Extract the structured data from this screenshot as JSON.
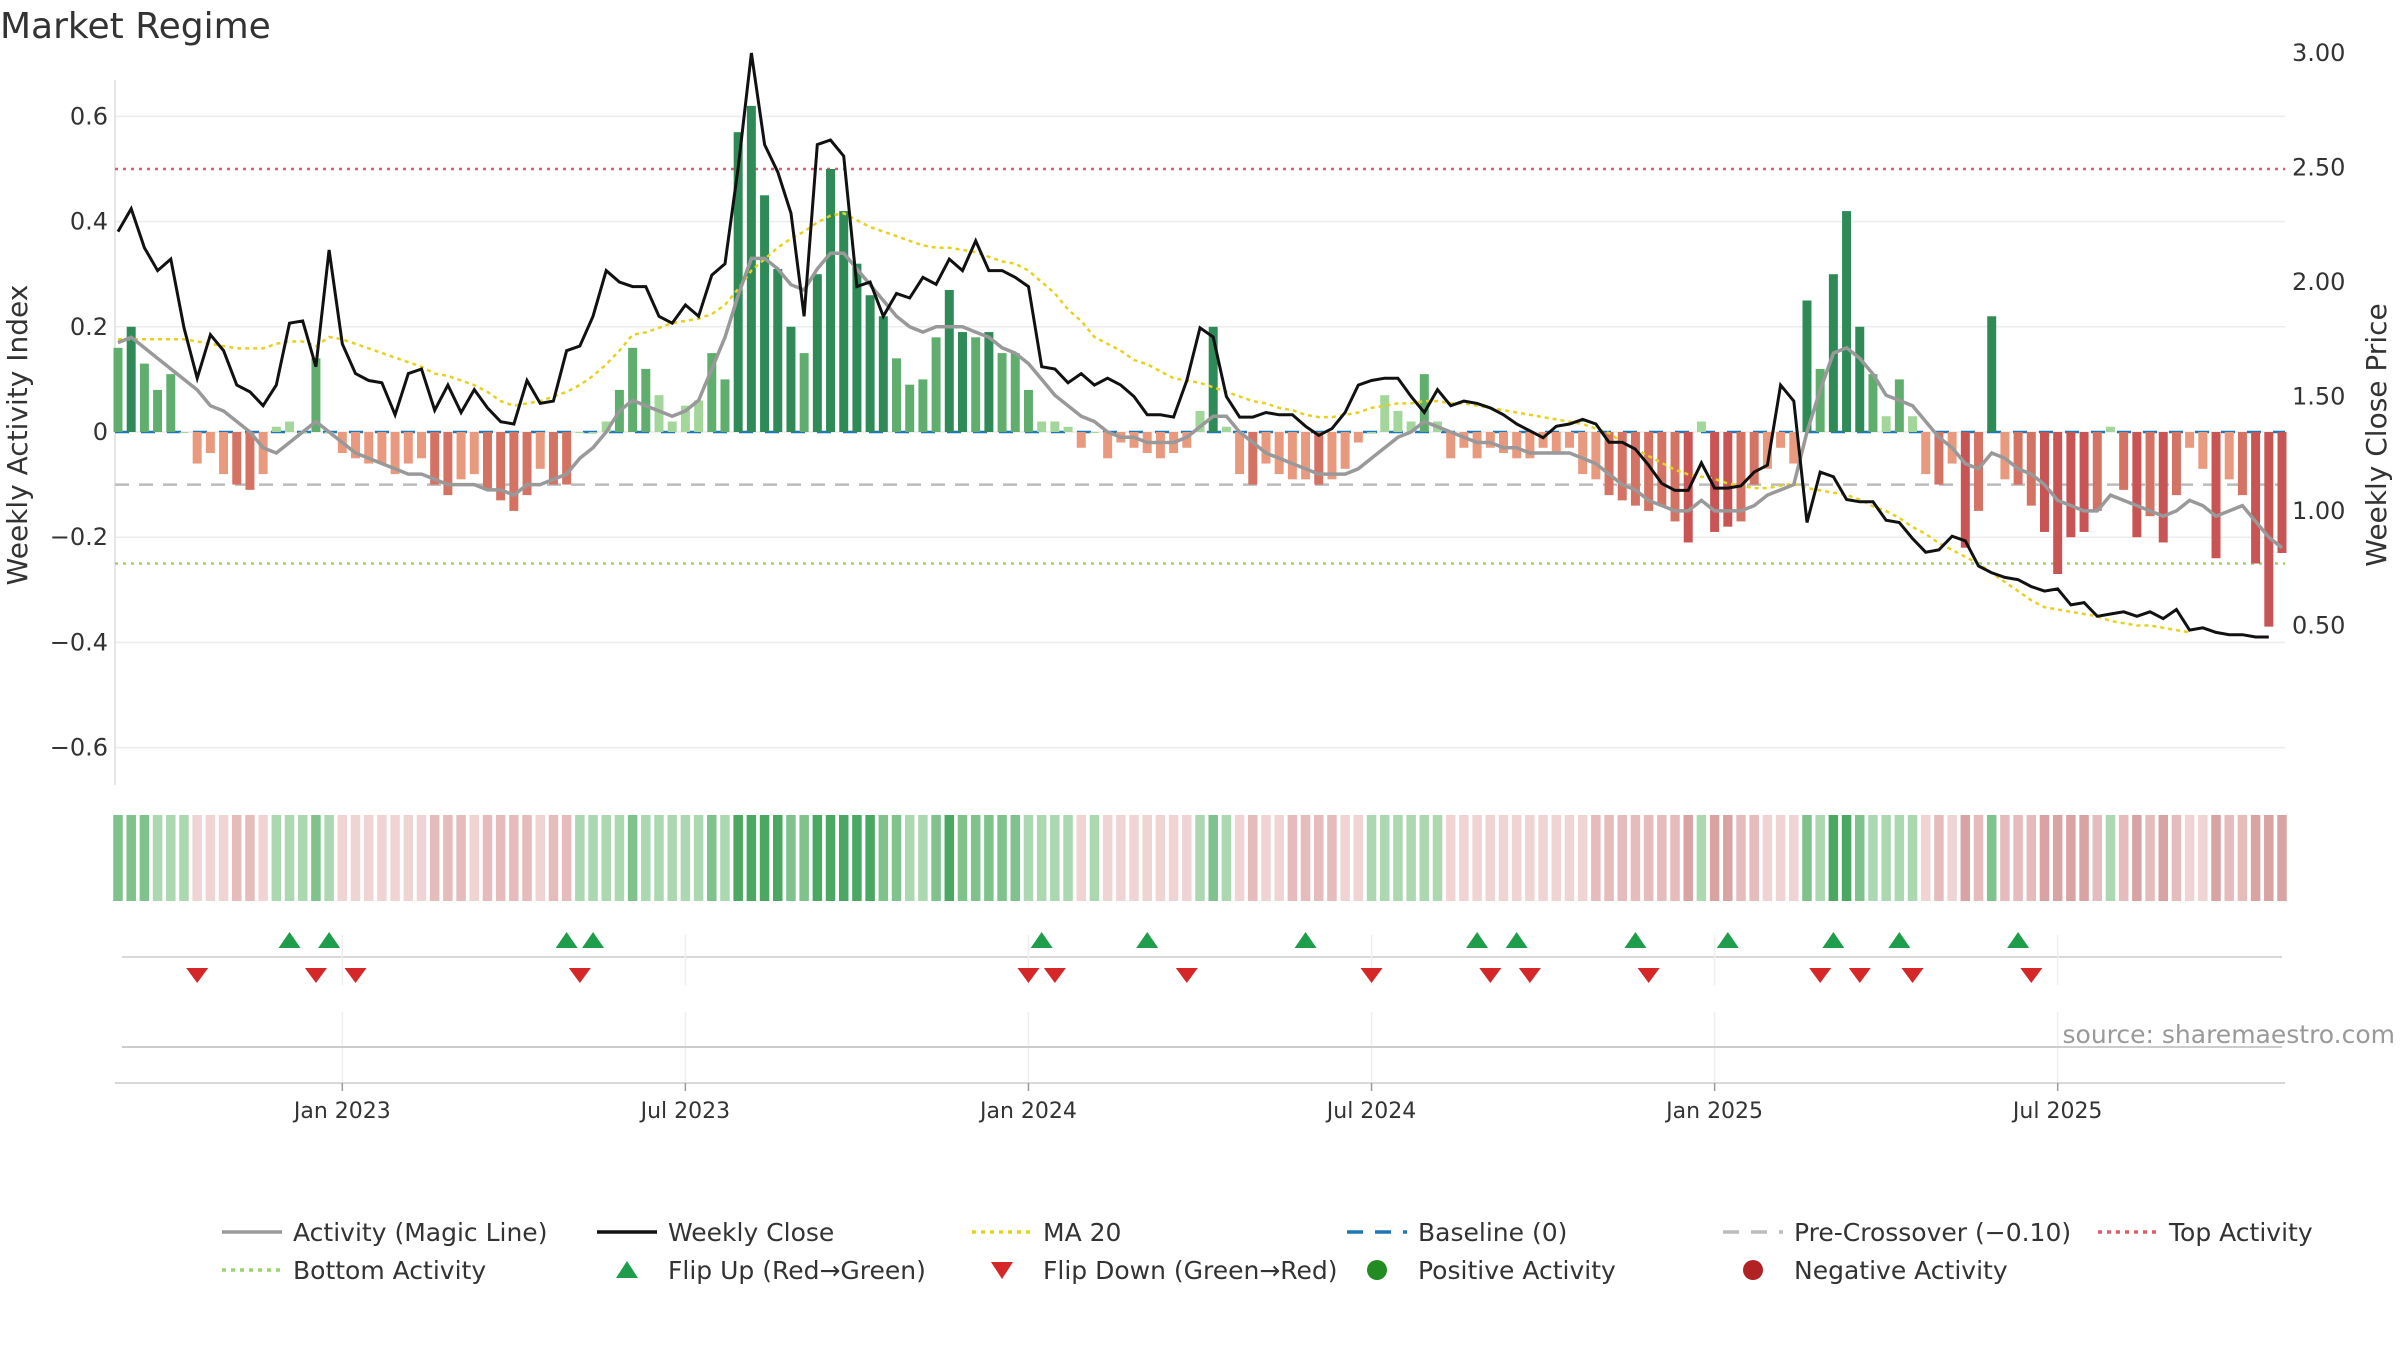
{
  "title": "Market Regime",
  "source": "source: sharemaestro.com",
  "axes": {
    "y_left_label": "Weekly Activity Index",
    "y_right_label": "Weekly Close Price",
    "y_left_ticks": [
      "0.6",
      "0.4",
      "0.2",
      "0",
      "−0.2",
      "−0.4",
      "−0.6"
    ],
    "y_left_tick_values": [
      0.6,
      0.4,
      0.2,
      0,
      -0.2,
      -0.4,
      -0.6
    ],
    "y_right_ticks": [
      "3.00",
      "2.50",
      "2.00",
      "1.50",
      "1.00",
      "0.50"
    ],
    "y_right_tick_values": [
      3.0,
      2.5,
      2.0,
      1.5,
      1.0,
      0.5
    ],
    "x_ticks": [
      "Jan 2023",
      "Jul 2023",
      "Jan 2024",
      "Jul 2024",
      "Jan 2025",
      "Jul 2025"
    ],
    "x_tick_weeks": [
      17,
      43,
      69,
      95,
      121,
      147
    ]
  },
  "legend": [
    {
      "label": "Activity (Magic Line)",
      "kind": "line",
      "color": "#999999",
      "dash": "solid"
    },
    {
      "label": "Weekly Close",
      "kind": "line",
      "color": "#111111",
      "dash": "solid"
    },
    {
      "label": "MA 20",
      "kind": "line",
      "color": "#e6d21c",
      "dash": "dotted"
    },
    {
      "label": "Baseline (0)",
      "kind": "line",
      "color": "#1f77b4",
      "dash": "dashed"
    },
    {
      "label": "Pre-Crossover (−0.10)",
      "kind": "line",
      "color": "#bbbbbb",
      "dash": "dashed"
    },
    {
      "label": "Top Activity",
      "kind": "line",
      "color": "#e05a6a",
      "dash": "dotted"
    },
    {
      "label": "Bottom Activity",
      "kind": "line",
      "color": "#9ad46a",
      "dash": "dotted"
    },
    {
      "label": "Flip Up (Red→Green)",
      "kind": "tri-up",
      "color": "#1e9e4a"
    },
    {
      "label": "Flip Down (Green→Red)",
      "kind": "tri-down",
      "color": "#d62728"
    },
    {
      "label": "Positive Activity",
      "kind": "dot",
      "color": "#228b22"
    },
    {
      "label": "Negative Activity",
      "kind": "dot",
      "color": "#b22222"
    }
  ],
  "chart_data": {
    "type": "bar",
    "x_unit": "weekly",
    "x_start": "2022-09",
    "reference_lines": {
      "top_activity": 0.5,
      "bottom_activity": -0.25,
      "baseline": 0,
      "pre_crossover": -0.1
    },
    "y_left_range": [
      -0.67,
      0.67
    ],
    "y_right_range": [
      0.25,
      3.3
    ],
    "series": [
      {
        "name": "Weekly Activity Index",
        "axis": "left",
        "values": [
          0.16,
          0.2,
          0.13,
          0.08,
          0.11,
          0.0,
          -0.06,
          -0.04,
          -0.08,
          -0.1,
          -0.11,
          -0.08,
          0.01,
          0.02,
          0.0,
          0.14,
          0.0,
          -0.04,
          -0.05,
          -0.06,
          -0.06,
          -0.08,
          -0.06,
          -0.05,
          -0.1,
          -0.12,
          -0.09,
          -0.08,
          -0.11,
          -0.13,
          -0.15,
          -0.12,
          -0.07,
          -0.1,
          -0.1,
          0.0,
          0.0,
          0.02,
          0.08,
          0.16,
          0.12,
          0.07,
          0.02,
          0.05,
          0.06,
          0.15,
          0.1,
          0.57,
          0.62,
          0.45,
          0.31,
          0.2,
          0.15,
          0.3,
          0.5,
          0.42,
          0.32,
          0.26,
          0.22,
          0.14,
          0.09,
          0.1,
          0.18,
          0.27,
          0.19,
          0.18,
          0.19,
          0.15,
          0.15,
          0.08,
          0.02,
          0.02,
          0.01,
          -0.03,
          0.0,
          -0.05,
          -0.02,
          -0.03,
          -0.04,
          -0.05,
          -0.04,
          -0.03,
          0.04,
          0.2,
          0.01,
          -0.08,
          -0.1,
          -0.06,
          -0.08,
          -0.09,
          -0.09,
          -0.1,
          -0.09,
          -0.07,
          -0.02,
          0.0,
          0.07,
          0.04,
          0.02,
          0.11,
          0.02,
          -0.05,
          -0.03,
          -0.05,
          -0.03,
          -0.04,
          -0.05,
          -0.05,
          -0.03,
          -0.04,
          -0.03,
          -0.08,
          -0.09,
          -0.12,
          -0.13,
          -0.14,
          -0.15,
          -0.14,
          -0.17,
          -0.21,
          0.02,
          -0.19,
          -0.18,
          -0.17,
          -0.1,
          -0.07,
          -0.03,
          -0.06,
          0.25,
          0.12,
          0.3,
          0.42,
          0.2,
          0.11,
          0.03,
          0.1,
          0.03,
          -0.08,
          -0.1,
          -0.06,
          -0.22,
          -0.15,
          0.22,
          -0.09,
          -0.1,
          -0.14,
          -0.19,
          -0.27,
          -0.2,
          -0.19,
          -0.15,
          0.01,
          -0.11,
          -0.2,
          -0.16,
          -0.21,
          -0.12,
          -0.03,
          -0.07,
          -0.24,
          -0.09,
          -0.12,
          -0.25,
          -0.37,
          -0.23
        ]
      },
      {
        "name": "Activity (Magic Line)",
        "axis": "left",
        "values": [
          0.17,
          0.18,
          0.16,
          0.14,
          0.12,
          0.1,
          0.08,
          0.05,
          0.04,
          0.02,
          0.0,
          -0.03,
          -0.04,
          -0.02,
          0.0,
          0.02,
          0.0,
          -0.02,
          -0.04,
          -0.05,
          -0.06,
          -0.07,
          -0.08,
          -0.08,
          -0.09,
          -0.1,
          -0.1,
          -0.1,
          -0.11,
          -0.11,
          -0.12,
          -0.1,
          -0.1,
          -0.09,
          -0.08,
          -0.05,
          -0.03,
          0.0,
          0.04,
          0.06,
          0.05,
          0.04,
          0.03,
          0.04,
          0.06,
          0.12,
          0.18,
          0.26,
          0.33,
          0.33,
          0.31,
          0.28,
          0.27,
          0.31,
          0.34,
          0.34,
          0.31,
          0.28,
          0.25,
          0.22,
          0.2,
          0.19,
          0.2,
          0.2,
          0.2,
          0.19,
          0.18,
          0.16,
          0.15,
          0.13,
          0.1,
          0.07,
          0.05,
          0.03,
          0.02,
          0.0,
          -0.01,
          -0.01,
          -0.02,
          -0.02,
          -0.02,
          -0.01,
          0.01,
          0.03,
          0.03,
          0.0,
          -0.02,
          -0.04,
          -0.05,
          -0.06,
          -0.07,
          -0.08,
          -0.08,
          -0.08,
          -0.07,
          -0.05,
          -0.03,
          -0.01,
          0.0,
          0.02,
          0.01,
          0.0,
          -0.01,
          -0.02,
          -0.02,
          -0.03,
          -0.03,
          -0.04,
          -0.04,
          -0.04,
          -0.04,
          -0.05,
          -0.06,
          -0.08,
          -0.1,
          -0.11,
          -0.13,
          -0.14,
          -0.15,
          -0.15,
          -0.13,
          -0.15,
          -0.15,
          -0.15,
          -0.14,
          -0.12,
          -0.11,
          -0.1,
          0.0,
          0.08,
          0.15,
          0.16,
          0.14,
          0.11,
          0.07,
          0.06,
          0.05,
          0.02,
          -0.01,
          -0.03,
          -0.06,
          -0.07,
          -0.04,
          -0.05,
          -0.07,
          -0.08,
          -0.1,
          -0.13,
          -0.14,
          -0.15,
          -0.15,
          -0.12,
          -0.13,
          -0.14,
          -0.15,
          -0.16,
          -0.15,
          -0.13,
          -0.14,
          -0.16,
          -0.15,
          -0.14,
          -0.17,
          -0.2,
          -0.22
        ]
      },
      {
        "name": "Weekly Close",
        "axis": "right",
        "values": [
          2.22,
          2.32,
          2.15,
          2.05,
          2.1,
          1.8,
          1.58,
          1.77,
          1.7,
          1.55,
          1.52,
          1.46,
          1.55,
          1.82,
          1.83,
          1.63,
          2.14,
          1.73,
          1.6,
          1.57,
          1.56,
          1.42,
          1.6,
          1.62,
          1.44,
          1.55,
          1.43,
          1.53,
          1.45,
          1.39,
          1.38,
          1.57,
          1.47,
          1.48,
          1.7,
          1.72,
          1.85,
          2.05,
          2.0,
          1.98,
          1.98,
          1.85,
          1.82,
          1.9,
          1.85,
          2.03,
          2.08,
          2.5,
          3.0,
          2.6,
          2.48,
          2.3,
          1.85,
          2.6,
          2.62,
          2.55,
          1.98,
          2.0,
          1.85,
          1.95,
          1.93,
          2.02,
          1.99,
          2.1,
          2.05,
          2.18,
          2.05,
          2.05,
          2.02,
          1.98,
          1.63,
          1.62,
          1.56,
          1.6,
          1.55,
          1.58,
          1.55,
          1.5,
          1.42,
          1.42,
          1.41,
          1.57,
          1.8,
          1.76,
          1.5,
          1.41,
          1.41,
          1.43,
          1.42,
          1.42,
          1.37,
          1.33,
          1.36,
          1.43,
          1.55,
          1.57,
          1.58,
          1.58,
          1.5,
          1.43,
          1.53,
          1.46,
          1.48,
          1.47,
          1.45,
          1.42,
          1.38,
          1.35,
          1.32,
          1.37,
          1.38,
          1.4,
          1.38,
          1.3,
          1.3,
          1.27,
          1.2,
          1.12,
          1.09,
          1.09,
          1.21,
          1.1,
          1.1,
          1.11,
          1.17,
          1.2,
          1.55,
          1.48,
          0.95,
          1.17,
          1.15,
          1.05,
          1.04,
          1.04,
          0.96,
          0.95,
          0.88,
          0.82,
          0.83,
          0.89,
          0.87,
          0.76,
          0.73,
          0.71,
          0.7,
          0.67,
          0.65,
          0.66,
          0.59,
          0.6,
          0.54,
          0.55,
          0.56,
          0.54,
          0.56,
          0.53,
          0.57,
          0.48,
          0.49,
          0.47,
          0.46,
          0.46,
          0.45,
          0.45
        ]
      },
      {
        "name": "MA 20",
        "axis": "right",
        "values": [
          1.75,
          1.75,
          1.75,
          1.75,
          1.75,
          1.75,
          1.74,
          1.73,
          1.72,
          1.71,
          1.71,
          1.71,
          1.73,
          1.74,
          1.74,
          1.72,
          1.76,
          1.75,
          1.73,
          1.71,
          1.69,
          1.67,
          1.65,
          1.63,
          1.6,
          1.59,
          1.57,
          1.55,
          1.52,
          1.48,
          1.46,
          1.47,
          1.48,
          1.5,
          1.52,
          1.55,
          1.59,
          1.64,
          1.7,
          1.77,
          1.78,
          1.8,
          1.82,
          1.83,
          1.84,
          1.86,
          1.9,
          1.97,
          2.05,
          2.1,
          2.15,
          2.19,
          2.22,
          2.26,
          2.29,
          2.3,
          2.27,
          2.24,
          2.22,
          2.2,
          2.18,
          2.16,
          2.15,
          2.15,
          2.14,
          2.13,
          2.11,
          2.09,
          2.08,
          2.05,
          2.0,
          1.95,
          1.88,
          1.83,
          1.76,
          1.73,
          1.7,
          1.66,
          1.64,
          1.61,
          1.58,
          1.57,
          1.56,
          1.54,
          1.52,
          1.5,
          1.48,
          1.47,
          1.45,
          1.44,
          1.42,
          1.41,
          1.41,
          1.42,
          1.43,
          1.45,
          1.46,
          1.47,
          1.47,
          1.48,
          1.48,
          1.47,
          1.47,
          1.46,
          1.45,
          1.44,
          1.43,
          1.42,
          1.41,
          1.4,
          1.39,
          1.38,
          1.36,
          1.34,
          1.3,
          1.27,
          1.24,
          1.21,
          1.18,
          1.16,
          1.15,
          1.14,
          1.12,
          1.11,
          1.1,
          1.1,
          1.11,
          1.12,
          1.1,
          1.09,
          1.08,
          1.07,
          1.05,
          1.02,
          1.0,
          0.97,
          0.93,
          0.9,
          0.86,
          0.83,
          0.8,
          0.77,
          0.73,
          0.69,
          0.65,
          0.61,
          0.58,
          0.57,
          0.56,
          0.55,
          0.54,
          0.52,
          0.51,
          0.5,
          0.5,
          0.49,
          0.48,
          0.47
        ]
      }
    ],
    "regime_strip_activity": "weekly_activity_index",
    "flip_up_weeks": [
      13,
      16,
      34,
      36,
      70,
      78,
      90,
      103,
      106,
      115,
      122,
      130,
      135,
      144
    ],
    "flip_down_weeks": [
      6,
      15,
      18,
      35,
      69,
      71,
      81,
      95,
      104,
      107,
      116,
      129,
      132,
      136,
      145
    ]
  }
}
